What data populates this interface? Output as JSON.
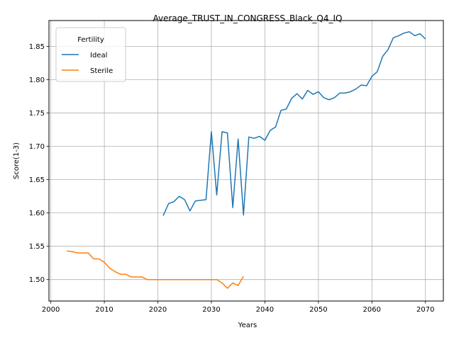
{
  "chart_data": {
    "type": "line",
    "title": "Average_TRUST_IN_CONGRESS_Black_Q4_IQ",
    "xlabel": "Years",
    "ylabel": "Score(1-3)",
    "xlim": [
      1999.65,
      2073.35
    ],
    "ylim": [
      1.4678,
      1.8888
    ],
    "x_ticks": [
      2000,
      2010,
      2020,
      2030,
      2040,
      2050,
      2060,
      2070
    ],
    "y_ticks": [
      1.5,
      1.55,
      1.6,
      1.65,
      1.7,
      1.75,
      1.8,
      1.85
    ],
    "x_tick_labels": [
      "2000",
      "2010",
      "2020",
      "2030",
      "2040",
      "2050",
      "2060",
      "2070"
    ],
    "y_tick_labels": [
      "1.50",
      "1.55",
      "1.60",
      "1.65",
      "1.70",
      "1.75",
      "1.80",
      "1.85"
    ],
    "grid": true,
    "legend": {
      "title": "Fertility",
      "placement": "upper-left",
      "entries": [
        "Ideal",
        "Sterile"
      ]
    },
    "series": [
      {
        "name": "Ideal",
        "color": "#1f77b4",
        "x": [
          2021,
          2022,
          2023,
          2024,
          2025,
          2026,
          2027,
          2028,
          2029,
          2030,
          2031,
          2032,
          2033,
          2034,
          2035,
          2036,
          2037,
          2038,
          2039,
          2040,
          2041,
          2042,
          2043,
          2044,
          2045,
          2046,
          2047,
          2048,
          2049,
          2050,
          2051,
          2052,
          2053,
          2054,
          2055,
          2056,
          2057,
          2058,
          2059,
          2060,
          2061,
          2062,
          2063,
          2064,
          2065,
          2066,
          2067,
          2068,
          2069,
          2070
        ],
        "y": [
          1.596,
          1.614,
          1.617,
          1.625,
          1.62,
          1.603,
          1.618,
          1.619,
          1.62,
          1.722,
          1.627,
          1.722,
          1.72,
          1.608,
          1.711,
          1.597,
          1.714,
          1.712,
          1.715,
          1.709,
          1.724,
          1.729,
          1.754,
          1.756,
          1.772,
          1.779,
          1.771,
          1.784,
          1.778,
          1.782,
          1.773,
          1.77,
          1.773,
          1.78,
          1.78,
          1.782,
          1.786,
          1.792,
          1.791,
          1.805,
          1.812,
          1.835,
          1.845,
          1.863,
          1.866,
          1.87,
          1.872,
          1.866,
          1.869,
          1.861
        ]
      },
      {
        "name": "Sterile",
        "color": "#ff7f0e",
        "x": [
          2003,
          2004,
          2005,
          2006,
          2007,
          2008,
          2009,
          2010,
          2011,
          2012,
          2013,
          2014,
          2015,
          2016,
          2017,
          2018,
          2019,
          2020,
          2021,
          2022,
          2023,
          2024,
          2025,
          2026,
          2027,
          2028,
          2029,
          2030,
          2031,
          2032,
          2033,
          2034,
          2035,
          2036
        ],
        "y": [
          1.543,
          1.542,
          1.54,
          1.54,
          1.54,
          1.531,
          1.531,
          1.526,
          1.517,
          1.512,
          1.508,
          1.508,
          1.504,
          1.504,
          1.504,
          1.5,
          1.5,
          1.5,
          1.5,
          1.5,
          1.5,
          1.5,
          1.5,
          1.5,
          1.5,
          1.5,
          1.5,
          1.5,
          1.5,
          1.495,
          1.487,
          1.495,
          1.491,
          1.505
        ]
      }
    ]
  }
}
